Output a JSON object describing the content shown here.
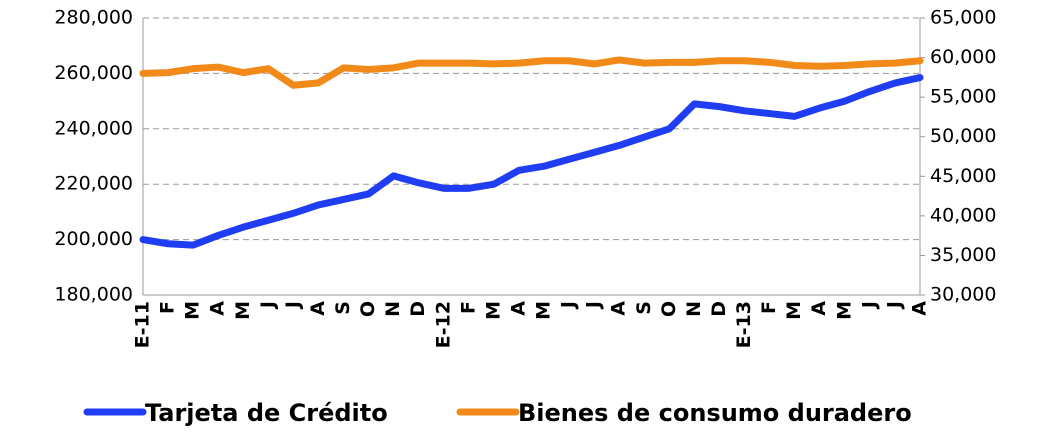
{
  "chart_data": {
    "type": "line",
    "categories": [
      "E-11",
      "F",
      "M",
      "A",
      "M",
      "J",
      "J",
      "A",
      "S",
      "O",
      "N",
      "D",
      "E-12",
      "F",
      "M",
      "A",
      "M",
      "J",
      "J",
      "A",
      "S",
      "O",
      "N",
      "D",
      "E-13",
      "F",
      "M",
      "A",
      "M",
      "J",
      "J",
      "A"
    ],
    "series": [
      {
        "name": "Tarjeta de Crédito",
        "color": "#1f3df2",
        "values": [
          200000,
          198500,
          198000,
          201500,
          204500,
          207000,
          209500,
          212500,
          214500,
          216500,
          223000,
          220500,
          218500,
          218500,
          220000,
          225000,
          226500,
          229000,
          231500,
          234000,
          237000,
          240000,
          249000,
          248000,
          246500,
          245500,
          244500,
          247500,
          250000,
          253500,
          256500,
          258500
        ]
      },
      {
        "name": "Bienes de consumo duradero",
        "color": "#f28a1a",
        "axis": "y2",
        "values": [
          58000,
          58100,
          58600,
          58800,
          58100,
          58600,
          56500,
          56800,
          58700,
          58500,
          58700,
          59300,
          59300,
          59300,
          59200,
          59300,
          59600,
          59600,
          59200,
          59700,
          59300,
          59400,
          59400,
          59600,
          59600,
          59400,
          59000,
          58900,
          59000,
          59200,
          59300,
          59600
        ]
      }
    ],
    "ylim": [
      180000,
      280000
    ],
    "yticks": [
      {
        "value": 180000,
        "label": "180,000"
      },
      {
        "value": 200000,
        "label": "200,000"
      },
      {
        "value": 220000,
        "label": "220,000"
      },
      {
        "value": 240000,
        "label": "240,000"
      },
      {
        "value": 260000,
        "label": "260,000"
      },
      {
        "value": 280000,
        "label": "280,000"
      }
    ],
    "y2lim": [
      30000,
      65000
    ],
    "y2ticks": [
      {
        "value": 30000,
        "label": "30,000"
      },
      {
        "value": 35000,
        "label": "35,000"
      },
      {
        "value": 40000,
        "label": "40,000"
      },
      {
        "value": 45000,
        "label": "45,000"
      },
      {
        "value": 50000,
        "label": "50,000"
      },
      {
        "value": 55000,
        "label": "55,000"
      },
      {
        "value": 60000,
        "label": "60,000"
      },
      {
        "value": 65000,
        "label": "65,000"
      }
    ],
    "grid": true,
    "legend": "bottom"
  }
}
